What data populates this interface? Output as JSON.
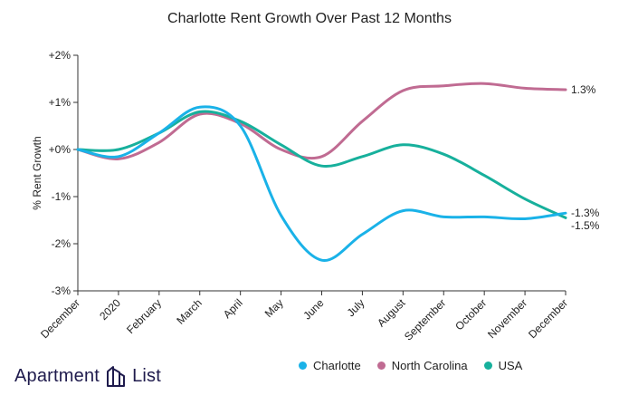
{
  "chart_data": {
    "type": "line",
    "title": "Charlotte Rent Growth Over Past 12 Months",
    "ylabel": "% Rent Growth",
    "xlabel": "",
    "categories": [
      "December",
      "2020",
      "February",
      "March",
      "April",
      "May",
      "June",
      "July",
      "August",
      "September",
      "October",
      "November",
      "December"
    ],
    "yticks": [
      {
        "value": 2,
        "label": "+2%"
      },
      {
        "value": 1,
        "label": "+1%"
      },
      {
        "value": 0,
        "label": "+0%"
      },
      {
        "value": -1,
        "label": "-1%"
      },
      {
        "value": -2,
        "label": "-2%"
      },
      {
        "value": -3,
        "label": "-3%"
      }
    ],
    "ylim": [
      -3,
      2
    ],
    "grid": false,
    "legend_position": "bottom",
    "series": [
      {
        "name": "Charlotte",
        "color": "#1ab2e8",
        "values": [
          0,
          -0.15,
          0.35,
          0.9,
          0.5,
          -1.4,
          -2.35,
          -1.8,
          -1.3,
          -1.43,
          -1.43,
          -1.47,
          -1.35
        ],
        "end_label": "-1.3%"
      },
      {
        "name": "North Carolina",
        "color": "#c06b92",
        "values": [
          0,
          -0.2,
          0.15,
          0.75,
          0.55,
          0.0,
          -0.15,
          0.6,
          1.25,
          1.35,
          1.4,
          1.3,
          1.27
        ],
        "end_label": "1.3%"
      },
      {
        "name": "USA",
        "color": "#17b09c",
        "values": [
          0,
          0.0,
          0.35,
          0.8,
          0.6,
          0.1,
          -0.35,
          -0.15,
          0.1,
          -0.1,
          -0.55,
          -1.05,
          -1.45
        ],
        "end_label": "-1.5%"
      }
    ]
  },
  "brand": {
    "name_left": "Apartment",
    "name_right": "List",
    "color": "#1f1b4d"
  }
}
